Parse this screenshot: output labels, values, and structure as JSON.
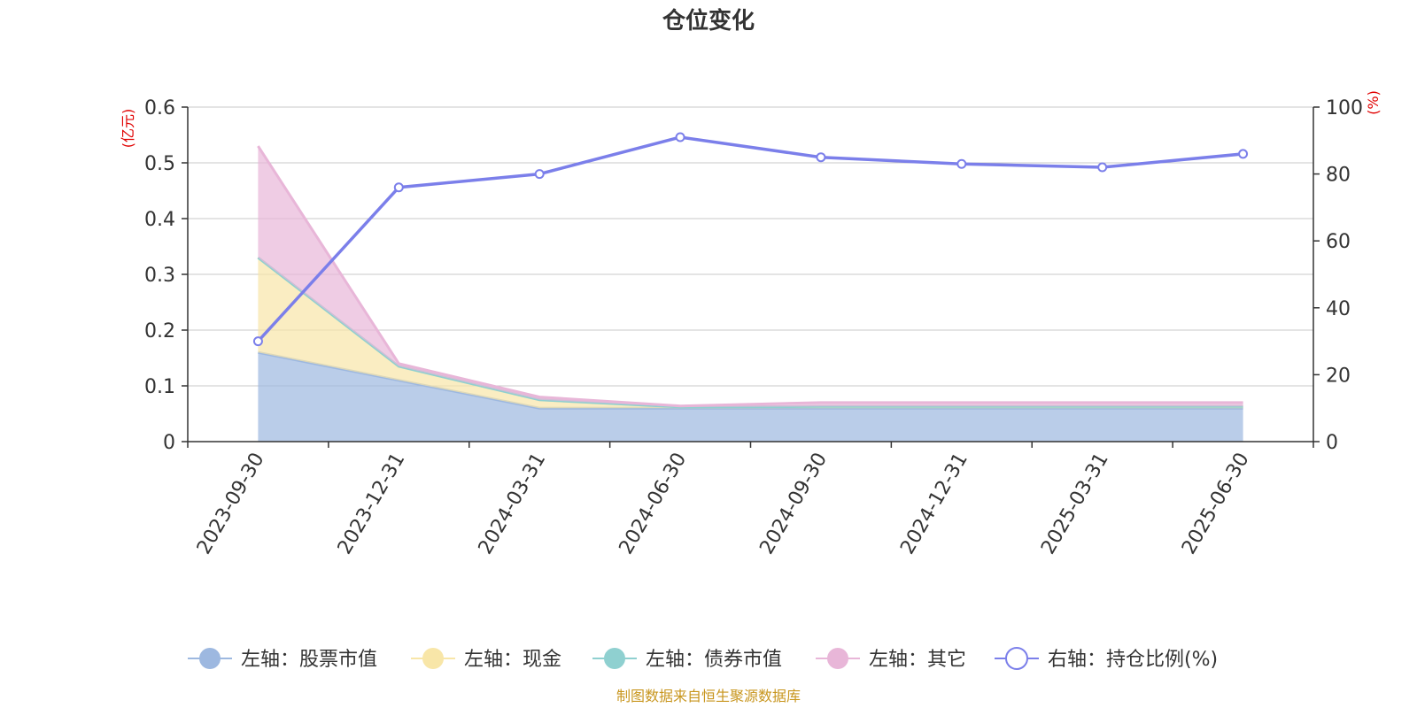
{
  "chart_data": {
    "type": "area",
    "title": "仓位变化",
    "categories": [
      "2023-09-30",
      "2023-12-31",
      "2024-03-31",
      "2024-06-30",
      "2024-09-30",
      "2024-12-31",
      "2025-03-31",
      "2025-06-30"
    ],
    "left_axis": {
      "unit": "(亿元)",
      "ylim": [
        0,
        0.6
      ],
      "ticks": [
        "0",
        "0.1",
        "0.2",
        "0.3",
        "0.4",
        "0.5",
        "0.6"
      ]
    },
    "right_axis": {
      "unit": "(%)",
      "ylim": [
        0,
        100
      ],
      "ticks": [
        "0",
        "20",
        "40",
        "60",
        "80",
        "100"
      ]
    },
    "grid": true,
    "legend_position": "bottom",
    "series": [
      {
        "name": "左轴：股票市值",
        "axis": "left",
        "kind": "stacked-area",
        "color": "#9db8e0",
        "values": [
          0.16,
          0.11,
          0.06,
          0.06,
          0.06,
          0.06,
          0.06,
          0.06
        ]
      },
      {
        "name": "左轴：现金",
        "axis": "left",
        "kind": "stacked-area",
        "color": "#f8e6a8",
        "values": [
          0.17,
          0.025,
          0.015,
          0.002,
          0.003,
          0.003,
          0.003,
          0.003
        ]
      },
      {
        "name": "左轴：债券市值",
        "axis": "left",
        "kind": "stacked-area",
        "color": "#8fd0d0",
        "values": [
          0,
          0,
          0,
          0,
          0,
          0,
          0,
          0
        ]
      },
      {
        "name": "左轴：其它",
        "axis": "left",
        "kind": "stacked-area",
        "color": "#e8b6d8",
        "values": [
          0.2,
          0.005,
          0.005,
          0.002,
          0.007,
          0.007,
          0.007,
          0.007
        ]
      },
      {
        "name": "右轴：持仓比例(%)",
        "axis": "right",
        "kind": "line",
        "color": "#7b7fea",
        "values": [
          30,
          76,
          80,
          91,
          85,
          83,
          82,
          86
        ]
      }
    ]
  },
  "source_note": "制图数据来自恒生聚源数据库"
}
